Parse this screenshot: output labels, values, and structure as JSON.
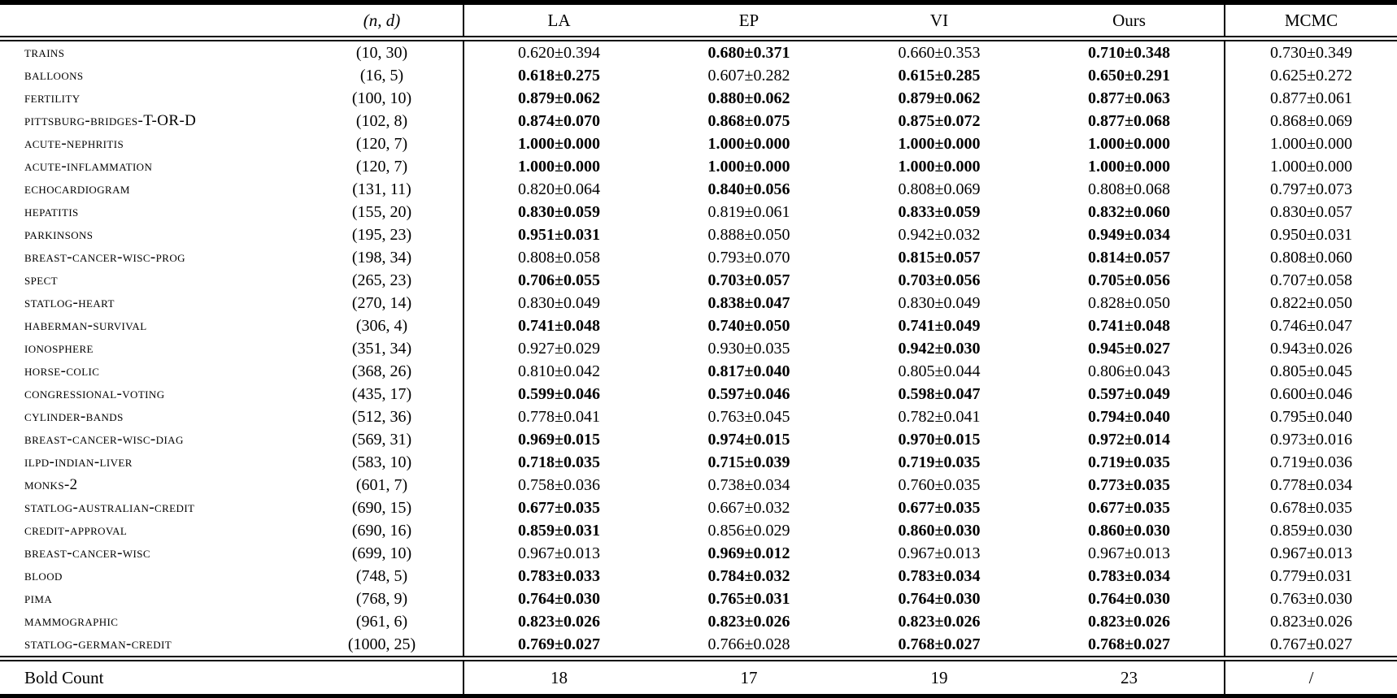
{
  "colors": {
    "text": "#000000",
    "rule": "#000000",
    "background": "#ffffff"
  },
  "table": {
    "columns": {
      "dataset": "",
      "nd": "(n, d)",
      "la": "LA",
      "ep": "EP",
      "vi": "VI",
      "ours": "Ours",
      "mcmc": "MCMC"
    },
    "rows": [
      {
        "dataset": "trains",
        "nd": "(10, 30)",
        "la": {
          "value": "0.620±0.394",
          "bold": false
        },
        "ep": {
          "value": "0.680±0.371",
          "bold": true
        },
        "vi": {
          "value": "0.660±0.353",
          "bold": false
        },
        "ours": {
          "value": "0.710±0.348",
          "bold": true
        },
        "mcmc": "0.730±0.349"
      },
      {
        "dataset": "balloons",
        "nd": "(16, 5)",
        "la": {
          "value": "0.618±0.275",
          "bold": true
        },
        "ep": {
          "value": "0.607±0.282",
          "bold": false
        },
        "vi": {
          "value": "0.615±0.285",
          "bold": true
        },
        "ours": {
          "value": "0.650±0.291",
          "bold": true
        },
        "mcmc": "0.625±0.272"
      },
      {
        "dataset": "fertility",
        "nd": "(100, 10)",
        "la": {
          "value": "0.879±0.062",
          "bold": true
        },
        "ep": {
          "value": "0.880±0.062",
          "bold": true
        },
        "vi": {
          "value": "0.879±0.062",
          "bold": true
        },
        "ours": {
          "value": "0.877±0.063",
          "bold": true
        },
        "mcmc": "0.877±0.061"
      },
      {
        "dataset": "pittsburg-bridges-T-OR-D",
        "nd": "(102, 8)",
        "la": {
          "value": "0.874±0.070",
          "bold": true
        },
        "ep": {
          "value": "0.868±0.075",
          "bold": true
        },
        "vi": {
          "value": "0.875±0.072",
          "bold": true
        },
        "ours": {
          "value": "0.877±0.068",
          "bold": true
        },
        "mcmc": "0.868±0.069"
      },
      {
        "dataset": "acute-nephritis",
        "nd": "(120, 7)",
        "la": {
          "value": "1.000±0.000",
          "bold": true
        },
        "ep": {
          "value": "1.000±0.000",
          "bold": true
        },
        "vi": {
          "value": "1.000±0.000",
          "bold": true
        },
        "ours": {
          "value": "1.000±0.000",
          "bold": true
        },
        "mcmc": "1.000±0.000"
      },
      {
        "dataset": "acute-inflammation",
        "nd": "(120, 7)",
        "la": {
          "value": "1.000±0.000",
          "bold": true
        },
        "ep": {
          "value": "1.000±0.000",
          "bold": true
        },
        "vi": {
          "value": "1.000±0.000",
          "bold": true
        },
        "ours": {
          "value": "1.000±0.000",
          "bold": true
        },
        "mcmc": "1.000±0.000"
      },
      {
        "dataset": "echocardiogram",
        "nd": "(131, 11)",
        "la": {
          "value": "0.820±0.064",
          "bold": false
        },
        "ep": {
          "value": "0.840±0.056",
          "bold": true
        },
        "vi": {
          "value": "0.808±0.069",
          "bold": false
        },
        "ours": {
          "value": "0.808±0.068",
          "bold": false
        },
        "mcmc": "0.797±0.073"
      },
      {
        "dataset": "hepatitis",
        "nd": "(155, 20)",
        "la": {
          "value": "0.830±0.059",
          "bold": true
        },
        "ep": {
          "value": "0.819±0.061",
          "bold": false
        },
        "vi": {
          "value": "0.833±0.059",
          "bold": true
        },
        "ours": {
          "value": "0.832±0.060",
          "bold": true
        },
        "mcmc": "0.830±0.057"
      },
      {
        "dataset": "parkinsons",
        "nd": "(195, 23)",
        "la": {
          "value": "0.951±0.031",
          "bold": true
        },
        "ep": {
          "value": "0.888±0.050",
          "bold": false
        },
        "vi": {
          "value": "0.942±0.032",
          "bold": false
        },
        "ours": {
          "value": "0.949±0.034",
          "bold": true
        },
        "mcmc": "0.950±0.031"
      },
      {
        "dataset": "breast-cancer-wisc-prog",
        "nd": "(198, 34)",
        "la": {
          "value": "0.808±0.058",
          "bold": false
        },
        "ep": {
          "value": "0.793±0.070",
          "bold": false
        },
        "vi": {
          "value": "0.815±0.057",
          "bold": true
        },
        "ours": {
          "value": "0.814±0.057",
          "bold": true
        },
        "mcmc": "0.808±0.060"
      },
      {
        "dataset": "spect",
        "nd": "(265, 23)",
        "la": {
          "value": "0.706±0.055",
          "bold": true
        },
        "ep": {
          "value": "0.703±0.057",
          "bold": true
        },
        "vi": {
          "value": "0.703±0.056",
          "bold": true
        },
        "ours": {
          "value": "0.705±0.056",
          "bold": true
        },
        "mcmc": "0.707±0.058"
      },
      {
        "dataset": "statlog-heart",
        "nd": "(270, 14)",
        "la": {
          "value": "0.830±0.049",
          "bold": false
        },
        "ep": {
          "value": "0.838±0.047",
          "bold": true
        },
        "vi": {
          "value": "0.830±0.049",
          "bold": false
        },
        "ours": {
          "value": "0.828±0.050",
          "bold": false
        },
        "mcmc": "0.822±0.050"
      },
      {
        "dataset": "haberman-survival",
        "nd": "(306, 4)",
        "la": {
          "value": "0.741±0.048",
          "bold": true
        },
        "ep": {
          "value": "0.740±0.050",
          "bold": true
        },
        "vi": {
          "value": "0.741±0.049",
          "bold": true
        },
        "ours": {
          "value": "0.741±0.048",
          "bold": true
        },
        "mcmc": "0.746±0.047"
      },
      {
        "dataset": "ionosphere",
        "nd": "(351, 34)",
        "la": {
          "value": "0.927±0.029",
          "bold": false
        },
        "ep": {
          "value": "0.930±0.035",
          "bold": false
        },
        "vi": {
          "value": "0.942±0.030",
          "bold": true
        },
        "ours": {
          "value": "0.945±0.027",
          "bold": true
        },
        "mcmc": "0.943±0.026"
      },
      {
        "dataset": "horse-colic",
        "nd": "(368, 26)",
        "la": {
          "value": "0.810±0.042",
          "bold": false
        },
        "ep": {
          "value": "0.817±0.040",
          "bold": true
        },
        "vi": {
          "value": "0.805±0.044",
          "bold": false
        },
        "ours": {
          "value": "0.806±0.043",
          "bold": false
        },
        "mcmc": "0.805±0.045"
      },
      {
        "dataset": "congressional-voting",
        "nd": "(435, 17)",
        "la": {
          "value": "0.599±0.046",
          "bold": true
        },
        "ep": {
          "value": "0.597±0.046",
          "bold": true
        },
        "vi": {
          "value": "0.598±0.047",
          "bold": true
        },
        "ours": {
          "value": "0.597±0.049",
          "bold": true
        },
        "mcmc": "0.600±0.046"
      },
      {
        "dataset": "cylinder-bands",
        "nd": "(512, 36)",
        "la": {
          "value": "0.778±0.041",
          "bold": false
        },
        "ep": {
          "value": "0.763±0.045",
          "bold": false
        },
        "vi": {
          "value": "0.782±0.041",
          "bold": false
        },
        "ours": {
          "value": "0.794±0.040",
          "bold": true
        },
        "mcmc": "0.795±0.040"
      },
      {
        "dataset": "breast-cancer-wisc-diag",
        "nd": "(569, 31)",
        "la": {
          "value": "0.969±0.015",
          "bold": true
        },
        "ep": {
          "value": "0.974±0.015",
          "bold": true
        },
        "vi": {
          "value": "0.970±0.015",
          "bold": true
        },
        "ours": {
          "value": "0.972±0.014",
          "bold": true
        },
        "mcmc": "0.973±0.016"
      },
      {
        "dataset": "ilpd-indian-liver",
        "nd": "(583, 10)",
        "la": {
          "value": "0.718±0.035",
          "bold": true
        },
        "ep": {
          "value": "0.715±0.039",
          "bold": true
        },
        "vi": {
          "value": "0.719±0.035",
          "bold": true
        },
        "ours": {
          "value": "0.719±0.035",
          "bold": true
        },
        "mcmc": "0.719±0.036"
      },
      {
        "dataset": "monks-2",
        "nd": "(601, 7)",
        "la": {
          "value": "0.758±0.036",
          "bold": false
        },
        "ep": {
          "value": "0.738±0.034",
          "bold": false
        },
        "vi": {
          "value": "0.760±0.035",
          "bold": false
        },
        "ours": {
          "value": "0.773±0.035",
          "bold": true
        },
        "mcmc": "0.778±0.034"
      },
      {
        "dataset": "statlog-australian-credit",
        "nd": "(690, 15)",
        "la": {
          "value": "0.677±0.035",
          "bold": true
        },
        "ep": {
          "value": "0.667±0.032",
          "bold": false
        },
        "vi": {
          "value": "0.677±0.035",
          "bold": true
        },
        "ours": {
          "value": "0.677±0.035",
          "bold": true
        },
        "mcmc": "0.678±0.035"
      },
      {
        "dataset": "credit-approval",
        "nd": "(690, 16)",
        "la": {
          "value": "0.859±0.031",
          "bold": true
        },
        "ep": {
          "value": "0.856±0.029",
          "bold": false
        },
        "vi": {
          "value": "0.860±0.030",
          "bold": true
        },
        "ours": {
          "value": "0.860±0.030",
          "bold": true
        },
        "mcmc": "0.859±0.030"
      },
      {
        "dataset": "breast-cancer-wisc",
        "nd": "(699, 10)",
        "la": {
          "value": "0.967±0.013",
          "bold": false
        },
        "ep": {
          "value": "0.969±0.012",
          "bold": true
        },
        "vi": {
          "value": "0.967±0.013",
          "bold": false
        },
        "ours": {
          "value": "0.967±0.013",
          "bold": false
        },
        "mcmc": "0.967±0.013"
      },
      {
        "dataset": "blood",
        "nd": "(748, 5)",
        "la": {
          "value": "0.783±0.033",
          "bold": true
        },
        "ep": {
          "value": "0.784±0.032",
          "bold": true
        },
        "vi": {
          "value": "0.783±0.034",
          "bold": true
        },
        "ours": {
          "value": "0.783±0.034",
          "bold": true
        },
        "mcmc": "0.779±0.031"
      },
      {
        "dataset": "pima",
        "nd": "(768, 9)",
        "la": {
          "value": "0.764±0.030",
          "bold": true
        },
        "ep": {
          "value": "0.765±0.031",
          "bold": true
        },
        "vi": {
          "value": "0.764±0.030",
          "bold": true
        },
        "ours": {
          "value": "0.764±0.030",
          "bold": true
        },
        "mcmc": "0.763±0.030"
      },
      {
        "dataset": "mammographic",
        "nd": "(961, 6)",
        "la": {
          "value": "0.823±0.026",
          "bold": true
        },
        "ep": {
          "value": "0.823±0.026",
          "bold": true
        },
        "vi": {
          "value": "0.823±0.026",
          "bold": true
        },
        "ours": {
          "value": "0.823±0.026",
          "bold": true
        },
        "mcmc": "0.823±0.026"
      },
      {
        "dataset": "statlog-german-credit",
        "nd": "(1000, 25)",
        "la": {
          "value": "0.769±0.027",
          "bold": true
        },
        "ep": {
          "value": "0.766±0.028",
          "bold": false
        },
        "vi": {
          "value": "0.768±0.027",
          "bold": true
        },
        "ours": {
          "value": "0.768±0.027",
          "bold": true
        },
        "mcmc": "0.767±0.027"
      }
    ],
    "footer": {
      "label": "Bold Count",
      "la": "18",
      "ep": "17",
      "vi": "19",
      "ours": "23",
      "mcmc": "/"
    }
  }
}
